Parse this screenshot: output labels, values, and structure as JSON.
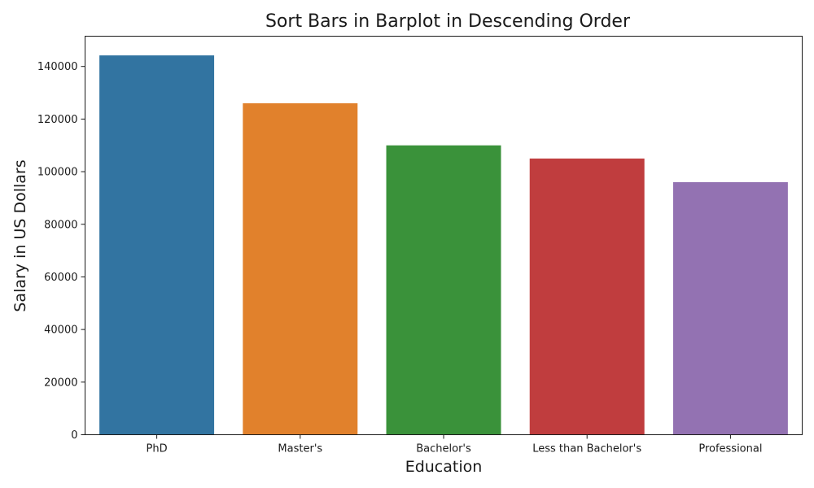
{
  "chart_data": {
    "type": "bar",
    "title": "Sort Bars in Barplot in Descending Order",
    "xlabel": "Education",
    "ylabel": "Salary in US Dollars",
    "categories": [
      "PhD",
      "Master's",
      "Bachelor's",
      "Less than Bachelor's",
      "Professional"
    ],
    "values": [
      144200,
      126000,
      110000,
      105000,
      96000
    ],
    "colors": [
      "#3274a1",
      "#e1812c",
      "#3a923a",
      "#c03d3e",
      "#9372b2"
    ],
    "ylim": [
      0,
      151500
    ],
    "yticks": [
      0,
      20000,
      40000,
      60000,
      80000,
      100000,
      120000,
      140000
    ],
    "grid": false,
    "legend": "none"
  }
}
